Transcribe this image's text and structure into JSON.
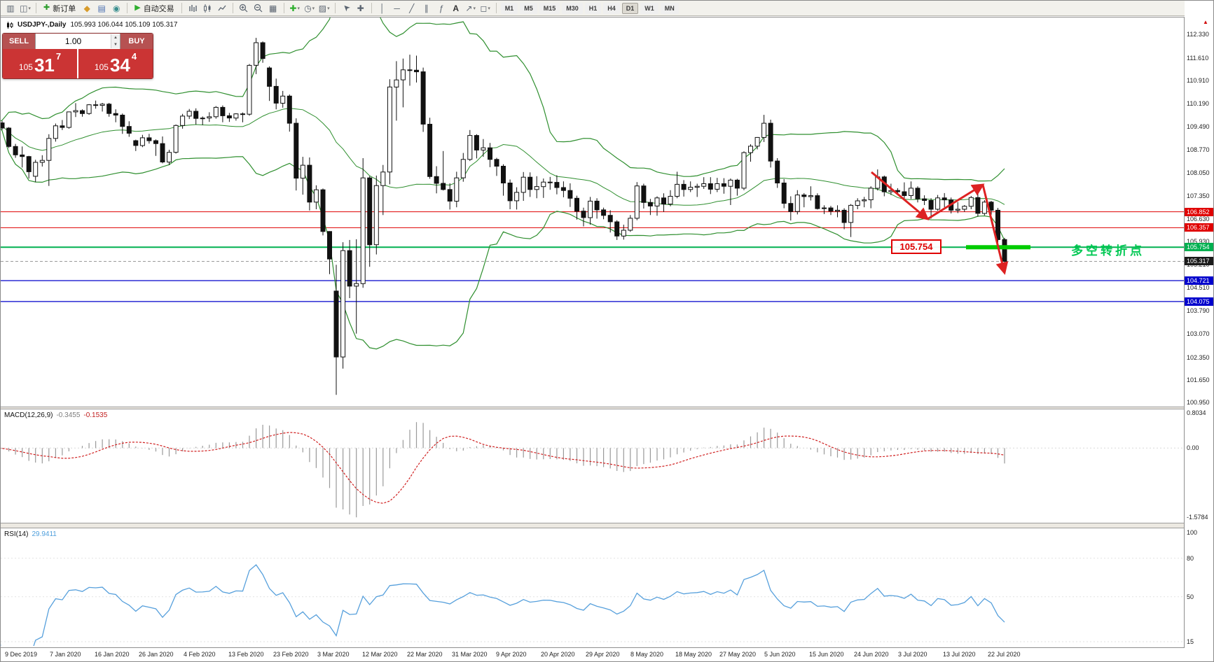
{
  "window": {
    "symbol_title": "USDJPY-,Daily",
    "ohlc_line": "105.993 106.044 105.109 105.317"
  },
  "toolbar": {
    "new_order": "新订单",
    "auto_trading": "自动交易",
    "timeframes": [
      "M1",
      "M5",
      "M15",
      "M30",
      "H1",
      "H4",
      "D1",
      "W1",
      "MN"
    ],
    "active_timeframe": "D1"
  },
  "one_click": {
    "sell_label": "SELL",
    "buy_label": "BUY",
    "volume": "1.00",
    "bid": {
      "prefix": "105",
      "big": "31",
      "sup": "7"
    },
    "ask": {
      "prefix": "105",
      "big": "34",
      "sup": "4"
    }
  },
  "price_axis": {
    "ticks": [
      "112.330",
      "111.610",
      "110.910",
      "110.190",
      "109.490",
      "108.770",
      "108.050",
      "107.350",
      "106.630",
      "105.930",
      "105.210",
      "104.510",
      "103.790",
      "103.070",
      "102.350",
      "101.650",
      "100.950"
    ]
  },
  "time_axis": {
    "labels": [
      "9 Dec 2019",
      "7 Jan 2020",
      "16 Jan 2020",
      "26 Jan 2020",
      "4 Feb 2020",
      "13 Feb 2020",
      "23 Feb 2020",
      "3 Mar 2020",
      "12 Mar 2020",
      "22 Mar 2020",
      "31 Mar 2020",
      "9 Apr 2020",
      "20 Apr 2020",
      "29 Apr 2020",
      "8 May 2020",
      "18 May 2020",
      "27 May 2020",
      "5 Jun 2020",
      "15 Jun 2020",
      "24 Jun 2020",
      "3 Jul 2020",
      "13 Jul 2020",
      "22 Jul 2020"
    ]
  },
  "hlines": [
    {
      "price": 106.852,
      "color": "#e00000",
      "tag": "106.852",
      "style": "solid",
      "width": 1
    },
    {
      "price": 106.357,
      "color": "#e00000",
      "tag": "106.357",
      "style": "solid",
      "width": 1
    },
    {
      "price": 105.754,
      "color": "#00b050",
      "tag": "105.754",
      "style": "solid",
      "width": 2
    },
    {
      "price": 105.317,
      "color": "#9a9a9a",
      "tag": "105.317",
      "style": "dash",
      "width": 1,
      "tag_bg": "#1a1a1a"
    },
    {
      "price": 104.721,
      "color": "#0000cc",
      "tag": "104.721",
      "style": "solid",
      "width": 1.3
    },
    {
      "price": 104.075,
      "color": "#0000cc",
      "tag": "104.075",
      "style": "solid",
      "width": 1.3
    }
  ],
  "annotations": {
    "price_box": "105.754",
    "cn_text": "多空转折点",
    "cn_color": "#00c853",
    "arrow_color": "#dd2222",
    "support_bar_color": "#00cc00"
  },
  "indicators": {
    "macd": {
      "label": "MACD(12,26,9)",
      "value1": "-0.3455",
      "value2": "-0.1535",
      "ticks": [
        "0.8034",
        "0.00",
        "-1.5784"
      ]
    },
    "rsi": {
      "label": "RSI(14)",
      "value": "29.9411",
      "ticks": [
        "100",
        "80",
        "50",
        "15"
      ]
    }
  },
  "chart_data": {
    "type": "candlestick",
    "symbol": "USDJPY",
    "timeframe": "Daily",
    "ylim": [
      100.95,
      112.33
    ],
    "overlays": {
      "bollinger_period": 20,
      "bollinger_deviation": 2
    },
    "sub_indicators": [
      "MACD(12,26,9)",
      "RSI(14)"
    ],
    "ohlc": [
      [
        109.37,
        109.64,
        109.32,
        109.6
      ],
      [
        109.6,
        109.66,
        109.38,
        109.44
      ],
      [
        109.44,
        109.47,
        108.82,
        108.87
      ],
      [
        108.87,
        108.95,
        108.52,
        108.61
      ],
      [
        108.61,
        108.87,
        108.22,
        108.56
      ],
      [
        108.56,
        108.58,
        107.88,
        108.09
      ],
      [
        107.95,
        108.46,
        107.77,
        108.38
      ],
      [
        108.38,
        108.6,
        108.25,
        108.44
      ],
      [
        108.44,
        109.25,
        107.65,
        109.12
      ],
      [
        109.12,
        109.58,
        109.02,
        109.51
      ],
      [
        109.51,
        109.69,
        109.38,
        109.46
      ],
      [
        109.46,
        109.95,
        109.42,
        109.94
      ],
      [
        109.94,
        110.21,
        109.78,
        109.98
      ],
      [
        109.98,
        110.02,
        109.79,
        109.89
      ],
      [
        109.89,
        110.18,
        109.85,
        110.16
      ],
      [
        110.16,
        110.29,
        110.04,
        110.14
      ],
      [
        110.14,
        110.22,
        109.95,
        110.18
      ],
      [
        110.18,
        110.22,
        109.79,
        109.89
      ],
      [
        109.89,
        110.02,
        109.62,
        109.84
      ],
      [
        109.84,
        109.89,
        109.26,
        109.49
      ],
      [
        109.49,
        109.65,
        109.17,
        109.28
      ],
      [
        109.05,
        109.08,
        108.73,
        108.9
      ],
      [
        108.9,
        109.23,
        108.85,
        109.14
      ],
      [
        109.14,
        109.26,
        108.96,
        109.05
      ],
      [
        109.05,
        109.09,
        108.58,
        108.96
      ],
      [
        108.96,
        109.18,
        108.35,
        108.39
      ],
      [
        108.39,
        108.77,
        108.3,
        108.69
      ],
      [
        108.69,
        109.55,
        108.65,
        109.52
      ],
      [
        109.52,
        109.88,
        109.42,
        109.81
      ],
      [
        109.81,
        110.03,
        109.72,
        109.96
      ],
      [
        109.96,
        110.05,
        109.55,
        109.74
      ],
      [
        109.74,
        109.8,
        109.53,
        109.75
      ],
      [
        109.75,
        109.93,
        109.63,
        109.79
      ],
      [
        109.79,
        110.12,
        109.73,
        110.08
      ],
      [
        110.08,
        110.14,
        109.62,
        109.82
      ],
      [
        109.82,
        109.91,
        109.63,
        109.75
      ],
      [
        109.75,
        109.9,
        109.67,
        109.88
      ],
      [
        109.88,
        109.92,
        109.62,
        109.87
      ],
      [
        109.87,
        111.42,
        109.82,
        111.38
      ],
      [
        111.38,
        112.23,
        111.11,
        112.08
      ],
      [
        112.08,
        112.12,
        111.46,
        111.59
      ],
      [
        111.3,
        111.35,
        110.28,
        110.73
      ],
      [
        110.73,
        110.97,
        110.02,
        110.21
      ],
      [
        110.21,
        110.59,
        110.07,
        110.43
      ],
      [
        110.43,
        110.48,
        109.33,
        109.59
      ],
      [
        109.59,
        109.74,
        107.51,
        107.89
      ],
      [
        107.89,
        108.55,
        107.38,
        108.29
      ],
      [
        108.29,
        108.53,
        106.89,
        107.15
      ],
      [
        107.15,
        107.67,
        106.93,
        107.53
      ],
      [
        107.53,
        107.57,
        106.12,
        106.24
      ],
      [
        106.24,
        106.25,
        104.92,
        105.39
      ],
      [
        104.4,
        105.21,
        101.19,
        102.36
      ],
      [
        102.36,
        105.91,
        102.0,
        105.65
      ],
      [
        105.65,
        105.98,
        104.18,
        104.55
      ],
      [
        104.55,
        106.0,
        103.08,
        104.63
      ],
      [
        104.63,
        108.51,
        104.5,
        107.9
      ],
      [
        107.9,
        107.95,
        105.15,
        105.83
      ],
      [
        105.83,
        107.97,
        105.53,
        107.66
      ],
      [
        107.66,
        108.3,
        106.75,
        108.08
      ],
      [
        108.08,
        110.95,
        107.7,
        110.71
      ],
      [
        110.71,
        111.51,
        109.67,
        110.93
      ],
      [
        110.93,
        111.59,
        110.08,
        111.24
      ],
      [
        111.24,
        111.71,
        110.75,
        111.23
      ],
      [
        111.23,
        111.68,
        110.85,
        111.18
      ],
      [
        111.18,
        111.31,
        109.32,
        109.56
      ],
      [
        109.56,
        109.76,
        107.87,
        107.94
      ],
      [
        107.94,
        108.26,
        107.42,
        107.73
      ],
      [
        107.73,
        108.73,
        107.51,
        107.54
      ],
      [
        107.54,
        107.73,
        106.92,
        107.18
      ],
      [
        107.18,
        108.09,
        106.99,
        107.9
      ],
      [
        107.9,
        108.67,
        107.78,
        108.47
      ],
      [
        108.47,
        109.38,
        108.42,
        109.21
      ],
      [
        109.21,
        109.25,
        108.5,
        108.76
      ],
      [
        108.76,
        109.1,
        108.55,
        108.83
      ],
      [
        108.83,
        108.98,
        108.23,
        108.47
      ],
      [
        108.47,
        108.52,
        107.96,
        108.26
      ],
      [
        108.26,
        108.32,
        107.35,
        107.74
      ],
      [
        107.74,
        107.85,
        106.93,
        107.19
      ],
      [
        107.19,
        107.61,
        106.92,
        107.45
      ],
      [
        107.45,
        108.08,
        107.19,
        107.92
      ],
      [
        107.92,
        108.07,
        107.31,
        107.54
      ],
      [
        107.54,
        107.95,
        107.27,
        107.63
      ],
      [
        107.63,
        107.88,
        107.28,
        107.77
      ],
      [
        107.77,
        107.93,
        107.53,
        107.76
      ],
      [
        107.76,
        107.98,
        107.39,
        107.6
      ],
      [
        107.6,
        107.79,
        107.3,
        107.51
      ],
      [
        107.51,
        107.73,
        107.0,
        107.27
      ],
      [
        107.27,
        107.35,
        106.61,
        106.87
      ],
      [
        106.87,
        106.98,
        106.4,
        106.67
      ],
      [
        106.67,
        107.31,
        106.45,
        107.18
      ],
      [
        107.18,
        107.27,
        106.64,
        106.91
      ],
      [
        106.91,
        106.98,
        106.62,
        106.74
      ],
      [
        106.74,
        106.9,
        106.21,
        106.54
      ],
      [
        106.54,
        106.59,
        105.98,
        106.1
      ],
      [
        106.1,
        106.45,
        105.99,
        106.28
      ],
      [
        106.28,
        106.75,
        106.23,
        106.65
      ],
      [
        106.65,
        107.77,
        106.59,
        107.65
      ],
      [
        107.65,
        107.72,
        106.95,
        107.14
      ],
      [
        107.14,
        107.25,
        106.75,
        107.03
      ],
      [
        107.03,
        107.33,
        106.73,
        107.28
      ],
      [
        107.28,
        107.42,
        106.85,
        107.09
      ],
      [
        107.09,
        107.52,
        107.02,
        107.33
      ],
      [
        107.33,
        108.09,
        107.27,
        107.7
      ],
      [
        107.7,
        107.83,
        107.32,
        107.54
      ],
      [
        107.54,
        107.79,
        107.46,
        107.61
      ],
      [
        107.61,
        107.72,
        107.31,
        107.64
      ],
      [
        107.64,
        107.92,
        107.56,
        107.72
      ],
      [
        107.72,
        107.92,
        107.4,
        107.55
      ],
      [
        107.55,
        107.9,
        107.46,
        107.72
      ],
      [
        107.72,
        107.89,
        107.41,
        107.64
      ],
      [
        107.64,
        107.88,
        107.06,
        107.83
      ],
      [
        107.83,
        107.87,
        107.35,
        107.58
      ],
      [
        107.58,
        108.72,
        107.52,
        108.68
      ],
      [
        108.68,
        108.94,
        108.4,
        108.88
      ],
      [
        108.88,
        109.16,
        108.78,
        109.15
      ],
      [
        109.15,
        109.85,
        109.01,
        109.59
      ],
      [
        109.59,
        109.7,
        108.22,
        108.42
      ],
      [
        108.42,
        108.51,
        107.59,
        107.74
      ],
      [
        107.74,
        107.86,
        106.96,
        107.11
      ],
      [
        107.11,
        107.33,
        106.58,
        106.86
      ],
      [
        106.86,
        107.52,
        106.77,
        107.37
      ],
      [
        107.37,
        107.43,
        106.99,
        107.32
      ],
      [
        107.32,
        107.64,
        107.2,
        107.35
      ],
      [
        107.35,
        107.42,
        106.92,
        106.95
      ],
      [
        106.95,
        107.05,
        106.78,
        106.97
      ],
      [
        106.97,
        107.03,
        106.75,
        106.87
      ],
      [
        106.87,
        107.05,
        106.68,
        106.9
      ],
      [
        106.9,
        106.96,
        106.31,
        106.52
      ],
      [
        106.52,
        107.09,
        106.07,
        107.05
      ],
      [
        107.05,
        107.27,
        106.93,
        107.19
      ],
      [
        107.19,
        107.31,
        106.99,
        107.22
      ],
      [
        107.22,
        107.64,
        106.96,
        107.58
      ],
      [
        107.58,
        108.16,
        107.51,
        107.93
      ],
      [
        107.93,
        107.97,
        107.33,
        107.47
      ],
      [
        107.47,
        107.72,
        107.37,
        107.51
      ],
      [
        107.51,
        107.58,
        107.41,
        107.47
      ],
      [
        107.47,
        107.76,
        107.24,
        107.35
      ],
      [
        107.35,
        107.79,
        107.25,
        107.58
      ],
      [
        107.58,
        107.64,
        107.14,
        107.25
      ],
      [
        107.25,
        107.36,
        107.06,
        107.2
      ],
      [
        107.2,
        107.27,
        106.64,
        106.93
      ],
      [
        106.93,
        107.37,
        106.88,
        107.28
      ],
      [
        107.28,
        107.43,
        106.99,
        107.22
      ],
      [
        107.22,
        107.29,
        106.8,
        106.9
      ],
      [
        106.9,
        107.15,
        106.81,
        106.93
      ],
      [
        106.93,
        107.06,
        106.85,
        107.02
      ],
      [
        107.02,
        107.34,
        106.93,
        107.29
      ],
      [
        107.29,
        107.41,
        106.7,
        106.8
      ],
      [
        106.8,
        107.21,
        106.74,
        107.15
      ],
      [
        107.15,
        107.19,
        106.76,
        106.9
      ],
      [
        106.9,
        106.97,
        105.81,
        105.99
      ],
      [
        105.993,
        106.044,
        105.109,
        105.317
      ]
    ]
  }
}
